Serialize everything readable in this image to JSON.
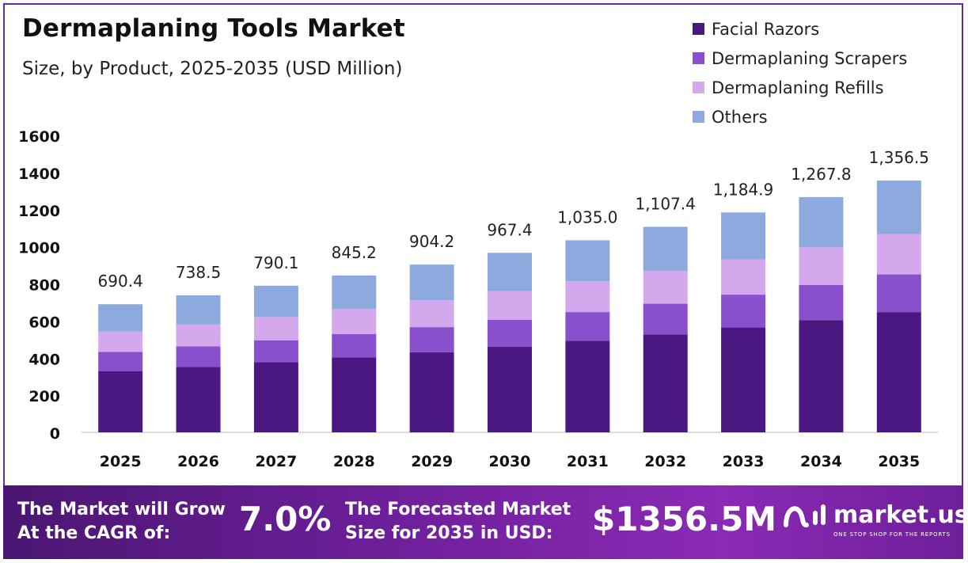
{
  "header": {
    "title": "Dermaplaning Tools Market",
    "subtitle": "Size, by Product, 2025-2035 (USD Million)"
  },
  "legend": {
    "items": [
      {
        "label": "Facial Razors",
        "color": "#4b1882"
      },
      {
        "label": "Dermaplaning Scrapers",
        "color": "#8a4fcd"
      },
      {
        "label": "Dermaplaning Refills",
        "color": "#d3a8ec"
      },
      {
        "label": "Others",
        "color": "#8ea9dd"
      }
    ]
  },
  "chart_data": {
    "type": "bar",
    "stacked": true,
    "title": "Dermaplaning Tools Market",
    "subtitle": "Size, by Product, 2025-2035 (USD Million)",
    "categories": [
      "2025",
      "2026",
      "2027",
      "2028",
      "2029",
      "2030",
      "2031",
      "2032",
      "2033",
      "2034",
      "2035"
    ],
    "series": [
      {
        "name": "Facial Razors",
        "color": "#4b1882",
        "values": [
          330,
          353,
          378,
          403,
          432,
          462,
          494,
          528,
          565,
          605,
          648
        ]
      },
      {
        "name": "Dermaplaning Scrapers",
        "color": "#8a4fcd",
        "values": [
          103,
          110,
          118,
          126,
          135,
          144,
          154,
          165,
          177,
          189,
          203
        ]
      },
      {
        "name": "Dermaplaning Refills",
        "color": "#d3a8ec",
        "values": [
          110,
          118,
          126,
          135,
          145,
          155,
          166,
          177,
          189,
          203,
          217
        ]
      },
      {
        "name": "Others",
        "color": "#8ea9dd",
        "values": [
          147.4,
          157.5,
          168.1,
          181.2,
          192.2,
          206.4,
          221.0,
          237.4,
          253.9,
          270.8,
          288.5
        ]
      }
    ],
    "totals": [
      690.4,
      738.5,
      790.1,
      845.2,
      904.2,
      967.4,
      1035.0,
      1107.4,
      1184.9,
      1267.8,
      1356.5
    ],
    "total_labels": [
      "690.4",
      "738.5",
      "790.1",
      "845.2",
      "904.2",
      "967.4",
      "1,035.0",
      "1,107.4",
      "1,184.9",
      "1,267.8",
      "1,356.5"
    ],
    "y_ticks": [
      "0",
      "200",
      "400",
      "600",
      "800",
      "1000",
      "1200",
      "1400",
      "1600"
    ],
    "ylim": [
      0,
      1600
    ],
    "grid": false,
    "legend_position": "top-right"
  },
  "footer": {
    "cagr_text_line1": "The Market will Grow",
    "cagr_text_line2": "At the CAGR of:",
    "cagr_value": "7.0%",
    "forecast_text_line1": "The Forecasted Market",
    "forecast_text_line2": "Size for 2035 in USD:",
    "forecast_value": "$1356.5M",
    "brand_name": "market.us",
    "brand_tagline": "ONE STOP SHOP FOR THE REPORTS"
  }
}
